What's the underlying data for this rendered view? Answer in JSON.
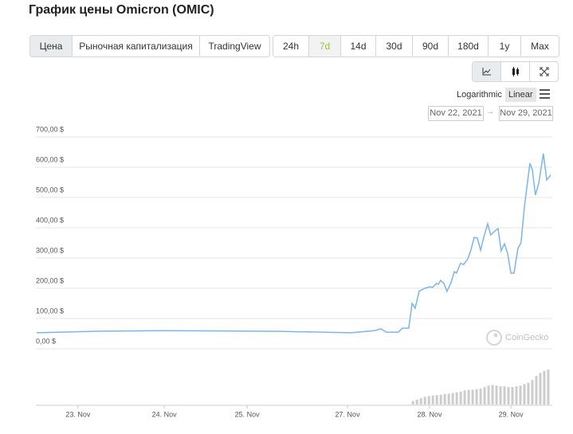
{
  "header": {
    "title": "График цены Omicron (OMIC)"
  },
  "tabs": [
    {
      "label": "Цена",
      "active": true
    },
    {
      "label": "Рыночная капитализация",
      "active": false
    },
    {
      "label": "TradingView",
      "active": false
    }
  ],
  "ranges": [
    {
      "label": "24h",
      "active": false
    },
    {
      "label": "7d",
      "active": true
    },
    {
      "label": "14d",
      "active": false
    },
    {
      "label": "30d",
      "active": false
    },
    {
      "label": "90d",
      "active": false
    },
    {
      "label": "180d",
      "active": false
    },
    {
      "label": "1y",
      "active": false
    },
    {
      "label": "Max",
      "active": false
    }
  ],
  "scale_options": [
    {
      "label": "Logarithmic",
      "active": false
    },
    {
      "label": "Linear",
      "active": true
    }
  ],
  "date_range": {
    "from": "Nov 22, 2021",
    "separator": "→",
    "to": "Nov 29, 2021"
  },
  "chart_data": {
    "type": "line",
    "watermark": "CoinGecko",
    "x": [
      0,
      19.3,
      41.4,
      77.9,
      102.6,
      110.4,
      112.5,
      114.3,
      118.2,
      119.5,
      121.6,
      122.7,
      123.7,
      125,
      126.8,
      128.6,
      129.4,
      130.7,
      131.3,
      132,
      133.1,
      134.1,
      135.4,
      136.5,
      137.2,
      138.5,
      139.6,
      140.9,
      141.9,
      143,
      144,
      145.1,
      146.1,
      147.4,
      148.4,
      149.7,
      150.8,
      151.8,
      152.9,
      153.9,
      155,
      156,
      157.3,
      158.3,
      159.4,
      161.2,
      162,
      163,
      164.1,
      165.6,
      166.7,
      168
    ],
    "series": [
      {
        "name": "Цена",
        "color": "#7cb5ec",
        "values": [
          53,
          58,
          60,
          58,
          53,
          60,
          66,
          55,
          55,
          68,
          68,
          150,
          134,
          190,
          200,
          205,
          203,
          216,
          213,
          226,
          216,
          190,
          218,
          255,
          250,
          282,
          279,
          297,
          326,
          368,
          366,
          326,
          368,
          413,
          376,
          389,
          397,
          324,
          347,
          316,
          250,
          250,
          332,
          350,
          468,
          613,
          592,
          508,
          547,
          645,
          558,
          574
        ]
      }
    ],
    "volume": {
      "color": "#cccccc",
      "y2lim": [
        0,
        100
      ],
      "x": [
        123.0,
        124.3,
        125.6,
        126.9,
        128.2,
        129.5,
        130.8,
        132.1,
        133.4,
        134.7,
        136.0,
        137.3,
        138.6,
        139.9,
        141.2,
        142.5,
        143.8,
        145.1,
        146.4,
        147.7,
        149.0,
        150.3,
        151.6,
        152.9,
        154.2,
        155.5,
        156.8,
        158.1,
        159.4,
        160.7,
        162.0,
        163.3,
        164.6,
        165.9,
        167.2
      ],
      "values": [
        10,
        14,
        18,
        22,
        24,
        26,
        27,
        28,
        30,
        31,
        33,
        35,
        37,
        40,
        42,
        42,
        44,
        46,
        50,
        54,
        56,
        54,
        52,
        52,
        50,
        50,
        52,
        54,
        58,
        62,
        70,
        82,
        90,
        96,
        100
      ]
    },
    "xlim": [
      0,
      168
    ],
    "xticks": [
      {
        "value": 13.5,
        "label": "23. Nov"
      },
      {
        "value": 41.7,
        "label": "24. Nov"
      },
      {
        "value": 68.8,
        "label": "25. Nov"
      },
      {
        "value": 101.6,
        "label": "27. Nov"
      },
      {
        "value": 128.4,
        "label": "28. Nov"
      },
      {
        "value": 155,
        "label": "29. Nov"
      }
    ],
    "ylim": [
      0,
      700
    ],
    "yticks": [
      {
        "value": 0,
        "label": "0,00 $"
      },
      {
        "value": 100,
        "label": "100,00 $"
      },
      {
        "value": 200,
        "label": "200,00 $"
      },
      {
        "value": 300,
        "label": "300,00 $"
      },
      {
        "value": 400,
        "label": "400,00 $"
      },
      {
        "value": 500,
        "label": "500,00 $"
      },
      {
        "value": 600,
        "label": "600,00 $"
      },
      {
        "value": 700,
        "label": "700,00 $"
      }
    ],
    "grid": true
  }
}
